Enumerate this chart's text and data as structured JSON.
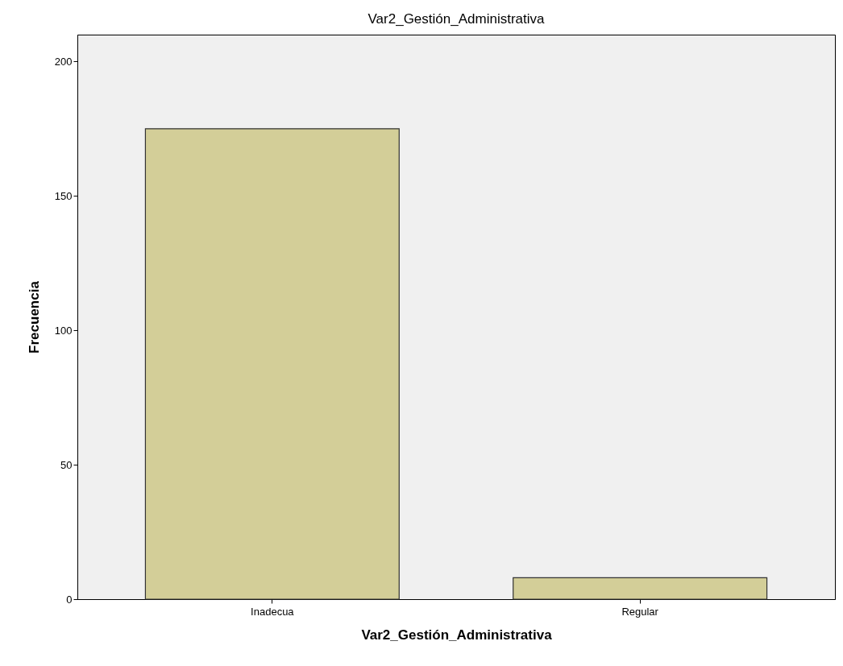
{
  "chart_data": {
    "type": "bar",
    "title": "Var2_Gestión_Administrativa",
    "xlabel": "Var2_Gestión_Administrativa",
    "ylabel": "Frecuencia",
    "categories": [
      "Inadecua",
      "Regular"
    ],
    "values": [
      175,
      8
    ],
    "color": "#d3ce98",
    "ylim": [
      0,
      210
    ],
    "yticks": [
      0,
      50,
      100,
      150,
      200
    ],
    "grid": false
  }
}
